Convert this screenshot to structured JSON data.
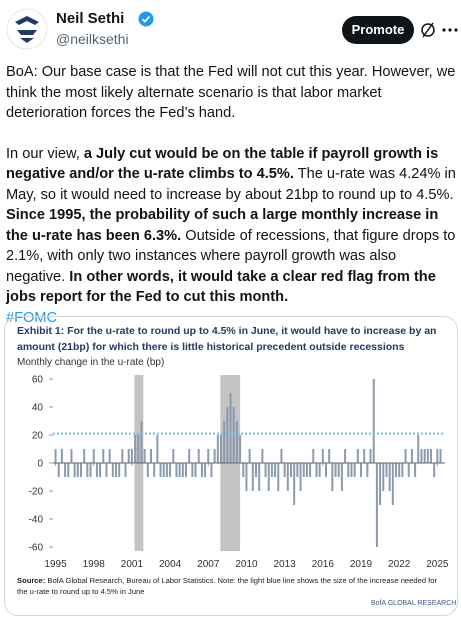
{
  "header": {
    "name": "Neil Sethi",
    "handle": "@neilksethi",
    "button": "Promote"
  },
  "body": {
    "paragraphs": [
      [
        {
          "text": "BoA: Our base case is that the Fed will not cut this year. However, we think the most likely alternate scenario is that labor market deterioration forces the Fed’s hand.",
          "bold": false
        }
      ],
      [
        {
          "text": "In our view, ",
          "bold": false
        },
        {
          "text": "a July cut would be on the table if payroll growth is negative and/or the u-rate climbs to 4.5%.",
          "bold": true
        },
        {
          "text": " The u-rate was 4.24% in May, so it would need to increase by about  21bp to round up to 4.5%. ",
          "bold": false
        },
        {
          "text": "Since 1995, the probability of such a large monthly increase  in the u-rate has been 6.3%.",
          "bold": true
        },
        {
          "text": " Outside of recessions, that figure drops to 2.1%, with only two instances where payroll growth was also negative. ",
          "bold": false
        },
        {
          "text": "In other words, it would take a  clear red flag from the jobs report for the Fed to cut this month.",
          "bold": true
        }
      ]
    ],
    "hashtag": "#FOMC"
  },
  "chart_data": {
    "type": "bar",
    "title": "Exhibit 1: For the u-rate to round up to 4.5% in June, it would have to increase by an amount (21bp) for which there is little historical precedent outside recessions",
    "subtitle": "Monthly change in the u-rate (bp)",
    "source_label": "Source:",
    "source": " BofA Global Research, Bureau of Labor Statistics. Note: the light blue line shows the size of the increase needed for the u-rate to round up to 4.5% in June",
    "logo": "BofA GLOBAL RESEARCH",
    "color": "#8a9bb0",
    "x": [
      1995,
      1995.25,
      1995.5,
      1995.75,
      1996,
      1996.25,
      1996.5,
      1996.75,
      1997,
      1997.25,
      1997.5,
      1997.75,
      1998,
      1998.25,
      1998.5,
      1998.75,
      1999,
      1999.25,
      1999.5,
      1999.75,
      2000,
      2000.25,
      2000.5,
      2000.75,
      2001,
      2001.25,
      2001.5,
      2001.75,
      2002,
      2002.25,
      2002.5,
      2002.75,
      2003,
      2003.25,
      2003.5,
      2003.75,
      2004,
      2004.25,
      2004.5,
      2004.75,
      2005,
      2005.25,
      2005.5,
      2005.75,
      2006,
      2006.25,
      2006.5,
      2006.75,
      2007,
      2007.25,
      2007.5,
      2007.75,
      2008,
      2008.25,
      2008.5,
      2008.75,
      2009,
      2009.25,
      2009.5,
      2009.75,
      2010,
      2010.25,
      2010.5,
      2010.75,
      2011,
      2011.25,
      2011.5,
      2011.75,
      2012,
      2012.25,
      2012.5,
      2012.75,
      2013,
      2013.25,
      2013.5,
      2013.75,
      2014,
      2014.25,
      2014.5,
      2014.75,
      2015,
      2015.25,
      2015.5,
      2015.75,
      2016,
      2016.25,
      2016.5,
      2016.75,
      2017,
      2017.25,
      2017.5,
      2017.75,
      2018,
      2018.25,
      2018.5,
      2018.75,
      2019,
      2019.25,
      2019.5,
      2019.75,
      2020,
      2020.25,
      2020.5,
      2020.75,
      2021,
      2021.25,
      2021.5,
      2021.75,
      2022,
      2022.25,
      2022.5,
      2022.75,
      2023,
      2023.25,
      2023.5,
      2023.75,
      2024,
      2024.25,
      2024.5,
      2024.75,
      2025,
      2025.25
    ],
    "values": [
      10,
      -10,
      10,
      -10,
      -10,
      10,
      -10,
      -10,
      -10,
      10,
      -10,
      -10,
      10,
      -10,
      -10,
      10,
      -10,
      10,
      -10,
      -10,
      -10,
      10,
      -10,
      10,
      10,
      20,
      20,
      30,
      10,
      -10,
      10,
      -10,
      20,
      -10,
      -10,
      -10,
      -10,
      10,
      -10,
      -10,
      -10,
      -10,
      10,
      -10,
      -10,
      10,
      -10,
      -10,
      10,
      -10,
      10,
      20,
      20,
      30,
      40,
      50,
      40,
      30,
      20,
      -10,
      -20,
      10,
      -20,
      -10,
      -20,
      10,
      -10,
      -20,
      -10,
      -10,
      -20,
      10,
      -10,
      -20,
      -10,
      -30,
      -10,
      -20,
      -10,
      -10,
      -10,
      10,
      -10,
      -10,
      10,
      -10,
      10,
      -20,
      -10,
      -10,
      -20,
      10,
      -10,
      -10,
      -10,
      10,
      -10,
      10,
      -10,
      10,
      60,
      -60,
      -30,
      -20,
      -10,
      -20,
      -30,
      -10,
      -10,
      -10,
      10,
      -10,
      10,
      -10,
      20,
      10,
      10,
      10,
      10,
      -10,
      10,
      10
    ],
    "recessions": [
      [
        2001.2,
        2001.9
      ],
      [
        2007.95,
        2009.5
      ]
    ],
    "recession_color": "#c4c4c4",
    "reference_line": {
      "value": 21,
      "color": "#6cc3ea"
    },
    "xlim": [
      1994.8,
      2025.6
    ],
    "xticks": [
      1995,
      1998,
      2001,
      2004,
      2007,
      2010,
      2013,
      2016,
      2019,
      2022,
      2025
    ],
    "ylim": [
      -60,
      60
    ],
    "yticks": [
      -60,
      -40,
      -20,
      0,
      20,
      40,
      60
    ]
  }
}
